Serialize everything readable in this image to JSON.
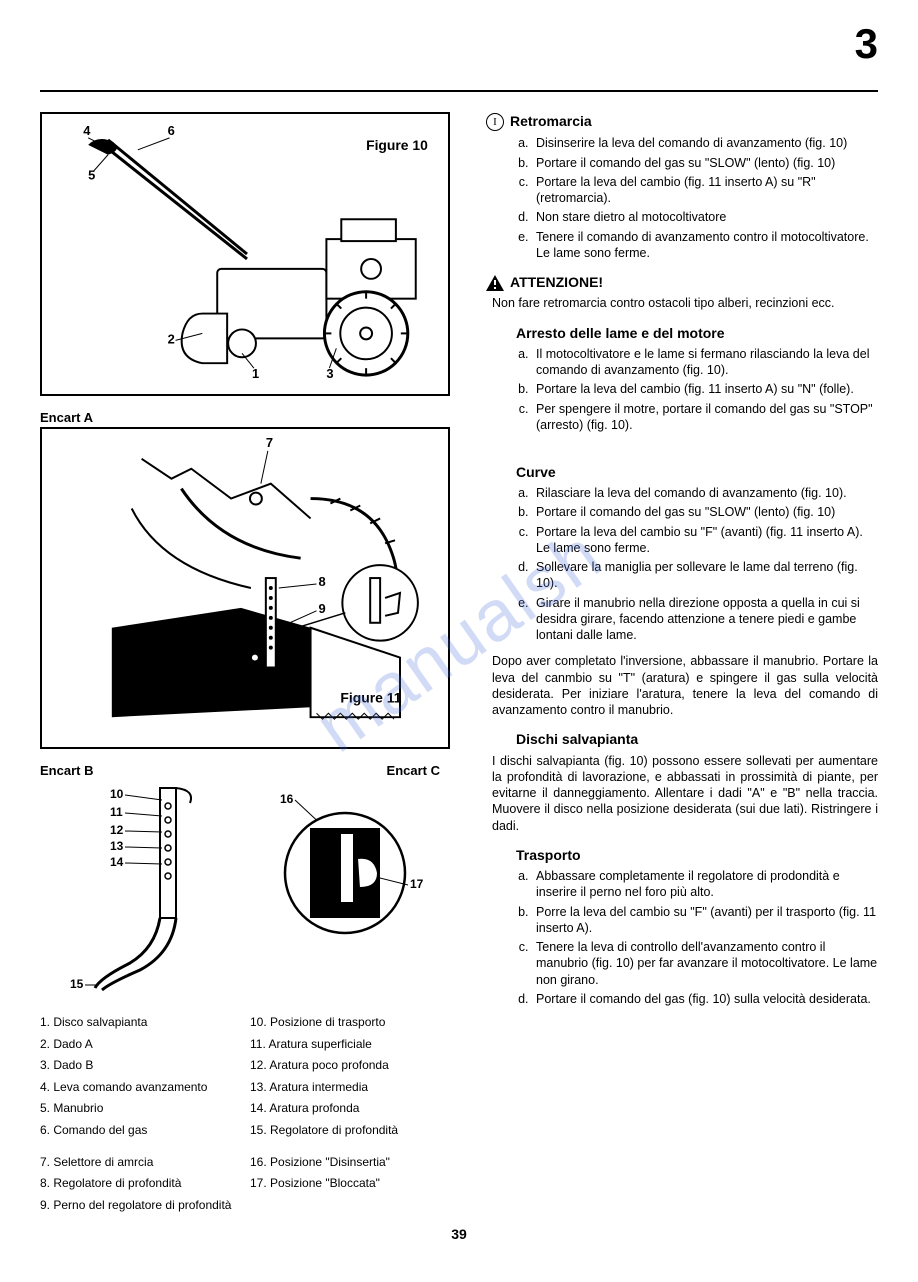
{
  "pageNumberTop": "3",
  "pageNumberBottom": "39",
  "watermark": "manualsh",
  "figures": {
    "fig10": {
      "label": "Figure 10",
      "callouts": [
        "1",
        "2",
        "3",
        "4",
        "5",
        "6"
      ]
    },
    "fig11": {
      "label": "Figure 11",
      "encartA": "Encart A",
      "callouts": [
        "7",
        "8",
        "9"
      ]
    },
    "encartB": {
      "label": "Encart B",
      "callouts": [
        "10",
        "11",
        "12",
        "13",
        "14",
        "15"
      ]
    },
    "encartC": {
      "label": "Encart C",
      "callouts": [
        "16",
        "17"
      ]
    }
  },
  "legend": {
    "left": [
      "1.  Disco salvapianta",
      "2.  Dado A",
      "3.  Dado B",
      "4.  Leva comando avanzamento",
      "5.  Manubrio",
      "6.  Comando del gas",
      "",
      "7.  Selettore di amrcia",
      "8.  Regolatore di profondità",
      "9.  Perno del regolatore di profondità"
    ],
    "right": [
      "10. Posizione di trasporto",
      "11. Aratura superficiale",
      "12. Aratura poco profonda",
      "13. Aratura intermedia",
      "14. Aratura profonda",
      "15. Regolatore di profondità",
      "",
      "16. Posizione \"Disinsertia\"",
      "17. Posizione \"Bloccata\""
    ]
  },
  "sections": {
    "retromarcia": {
      "title": "Retromarcia",
      "items": [
        "Disinserire la leva del comando di avanzamento (fig. 10)",
        "Portare il comando del gas su \"SLOW\" (lento) (fig. 10)",
        "Portare la leva del cambio (fig. 11 inserto A) su \"R\" (retromarcia).",
        "Non stare dietro al motocoltivatore",
        "Tenere il comando di avanzamento contro il motocoltivatore.  Le lame sono ferme."
      ]
    },
    "attenzione": {
      "title": "ATTENZIONE!",
      "text": "Non fare retromarcia contro ostacoli tipo alberi, recinzioni ecc."
    },
    "arresto": {
      "title": "Arresto delle lame e del motore",
      "items": [
        "Il motocoltivatore e le lame si fermano rilasciando la leva del comando di avanzamento (fig. 10).",
        "Portare la leva del cambio (fig. 11 inserto A) su \"N\" (folle).",
        "Per spengere il motre, portare il comando del gas su \"STOP\" (arresto) (fig. 10)."
      ]
    },
    "curve": {
      "title": "Curve",
      "items": [
        "Rilasciare la leva del comando di avanzamento (fig. 10).",
        "Portare il comando del gas su \"SLOW\" (lento) (fig. 10)",
        "Portare la leva del cambio su \"F\" (avanti) (fig. 11 inserto A).  Le lame sono ferme.",
        "Sollevare la maniglia per sollevare le lame dal terreno (fig. 10).",
        "Girare il manubrio nella direzione opposta a quella in cui si desidra girare, facendo attenzione a tenere piedi e gambe lontani dalle lame."
      ],
      "after": "Dopo aver completato l'inversione, abbassare il manubrio. Portare la leva del canmbio su \"T\" (aratura) e spingere il gas sulla velocità desiderata.  Per iniziare l'aratura, tenere la leva del comando di avanzamento contro il manubrio."
    },
    "dischi": {
      "title": "Dischi salvapianta",
      "text": "I dischi salvapianta (fig. 10) possono essere sollevati per aumentare la profondità di lavorazione, e abbassati in prossimità di piante, per evitarne il danneggiamento. Allentare i dadi \"A\" e \"B\" nella traccia.  Muovere il disco nella posizione desiderata (sui due lati).  Ristringere i dadi."
    },
    "trasporto": {
      "title": "Trasporto",
      "items": [
        "Abbassare completamente il regolatore di prodondità e inserire il perno nel foro più alto.",
        "Porre la leva del cambio su \"F\" (avanti) per il trasporto (fig. 11 inserto A).",
        "Tenere la leva di controllo dell'avanzamento contro il manubrio (fig. 10) per far avanzare il motocoltivatore. Le lame non girano.",
        "Portare il comando del gas (fig. 10) sulla velocità desiderata."
      ]
    }
  }
}
